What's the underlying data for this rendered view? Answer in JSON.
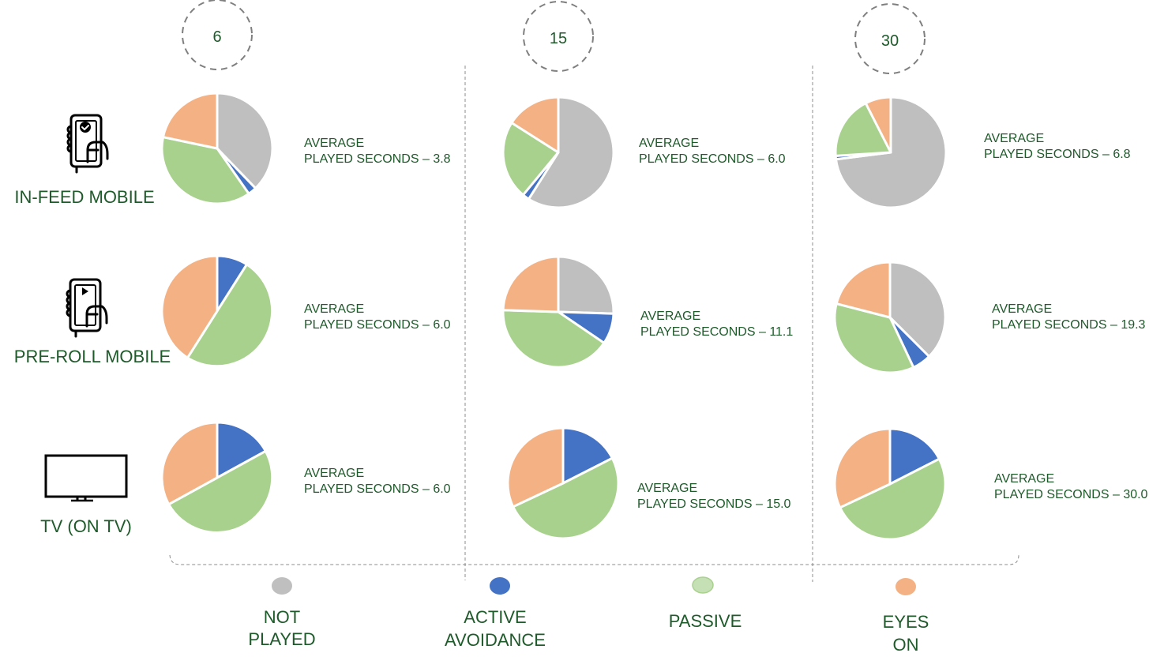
{
  "colors": {
    "not_played": "#bfbfbf",
    "active_avoidance": "#4472c4",
    "passive": "#a9d18e",
    "passive_legend": "#c5e0b4",
    "eyes_on": "#f4b183",
    "text": "#1e5a2a",
    "dash": "#7f7f7f"
  },
  "chart_data": {
    "type": "pie",
    "title": "",
    "columns": [
      "6",
      "15",
      "30"
    ],
    "rows": [
      {
        "label": "IN-FEED MOBILE",
        "icon": "hand-phone-check-icon"
      },
      {
        "label": "PRE-ROLL MOBILE",
        "icon": "hand-phone-play-icon"
      },
      {
        "label": "TV (ON TV)",
        "icon": "tv-icon"
      }
    ],
    "legend": [
      {
        "key": "not_played",
        "label_lines": [
          "NOT",
          "PLAYED"
        ]
      },
      {
        "key": "active_avoidance",
        "label_lines": [
          "ACTIVE",
          "AVOIDANCE"
        ]
      },
      {
        "key": "passive",
        "label_lines": [
          "PASSIVE"
        ]
      },
      {
        "key": "eyes_on",
        "label_lines": [
          "EYES",
          "ON"
        ]
      }
    ],
    "legend_position": "bottom",
    "series_order": [
      "not_played",
      "active_avoidance",
      "passive",
      "eyes_on"
    ],
    "pies": [
      [
        {
          "values": [
            37.8,
            2.5,
            38.0,
            21.7
          ],
          "caption": [
            "AVERAGE",
            "PLAYED SECONDS – 3.8"
          ]
        },
        {
          "values": [
            59.0,
            2.0,
            23.0,
            16.0
          ],
          "caption": [
            "AVERAGE",
            "PLAYED SECONDS – 6.0"
          ]
        },
        {
          "values": [
            73.0,
            1.0,
            18.5,
            7.5
          ],
          "caption": [
            "AVERAGE",
            "PLAYED SECONDS – 6.8"
          ]
        }
      ],
      [
        {
          "values": [
            0,
            9.0,
            50.0,
            41.0
          ],
          "caption": [
            "AVERAGE",
            "PLAYED SECONDS – 6.0"
          ]
        },
        {
          "values": [
            25.5,
            9.0,
            41.0,
            24.5
          ],
          "caption": [
            "AVERAGE",
            "PLAYED SECONDS – 11.1"
          ]
        },
        {
          "values": [
            37.5,
            5.5,
            36.0,
            21.0
          ],
          "caption": [
            "AVERAGE",
            "PLAYED SECONDS – 19.3"
          ]
        }
      ],
      [
        {
          "values": [
            0,
            17.0,
            50.0,
            33.0
          ],
          "caption": [
            "AVERAGE",
            "PLAYED SECONDS – 6.0"
          ]
        },
        {
          "values": [
            0,
            17.5,
            50.5,
            32.0
          ],
          "caption": [
            "AVERAGE",
            "PLAYED SECONDS – 15.0"
          ]
        },
        {
          "values": [
            0,
            17.5,
            50.5,
            32.0
          ],
          "caption": [
            "AVERAGE",
            "PLAYED SECONDS – 30.0"
          ]
        }
      ]
    ]
  }
}
